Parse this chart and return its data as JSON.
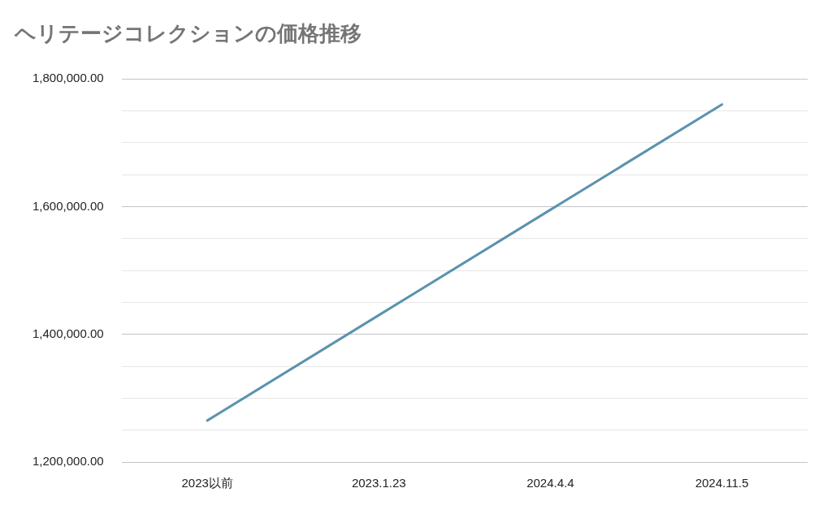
{
  "chart_data": {
    "type": "line",
    "title": "ヘリテージコレクションの価格推移",
    "categories": [
      "2023以前",
      "2023.1.23",
      "2024.4.4",
      "2024.11.5"
    ],
    "series": [
      {
        "color": "#5b93ad",
        "values": [
          1265000,
          1430000,
          1595000,
          1760000
        ]
      }
    ],
    "ylim": [
      1200000,
      1800000
    ],
    "yticks": [
      {
        "value": 1200000,
        "label": "1,200,000.00"
      },
      {
        "value": 1250000,
        "label": null
      },
      {
        "value": 1300000,
        "label": null
      },
      {
        "value": 1350000,
        "label": null
      },
      {
        "value": 1400000,
        "label": "1,400,000.00"
      },
      {
        "value": 1450000,
        "label": null
      },
      {
        "value": 1500000,
        "label": null
      },
      {
        "value": 1550000,
        "label": null
      },
      {
        "value": 1600000,
        "label": "1,600,000.00"
      },
      {
        "value": 1650000,
        "label": null
      },
      {
        "value": 1700000,
        "label": null
      },
      {
        "value": 1750000,
        "label": null
      },
      {
        "value": 1800000,
        "label": "1,800,000.00"
      }
    ],
    "grid": "y",
    "legend": false,
    "marker": "none",
    "line_style": "solid"
  }
}
